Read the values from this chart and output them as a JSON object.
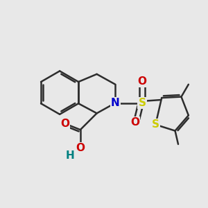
{
  "background_color": "#e8e8e8",
  "bond_color": "#2d2d2d",
  "bond_width": 1.8,
  "figsize": [
    3.0,
    3.0
  ],
  "dpi": 100,
  "colors": {
    "N": "#0000cc",
    "S": "#cccc00",
    "O": "#cc0000",
    "H": "#008080",
    "C": "#2d2d2d"
  },
  "fontsize": 11
}
